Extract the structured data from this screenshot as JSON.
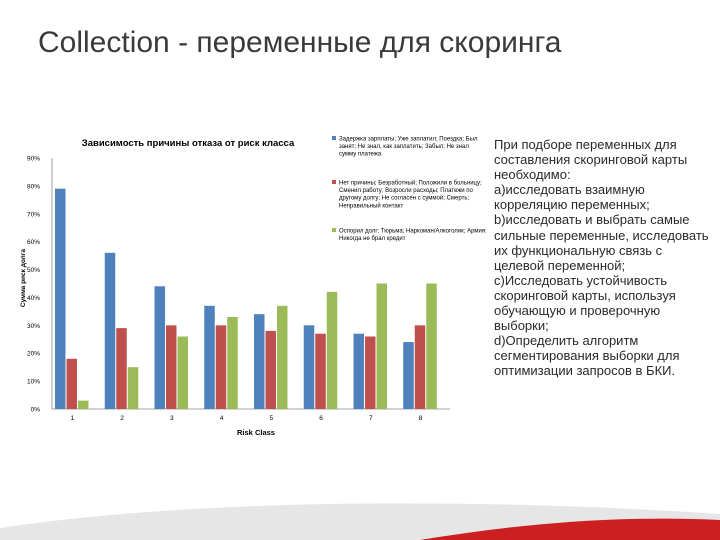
{
  "slide": {
    "title": "Collection - переменные для скоринга",
    "body_text": "При подборе переменных для составления скоринговой карты необходимо:\nа)исследовать взаимную корреляцию переменных;\nb)исследовать и выбрать самые сильные переменные, исследовать их функциональную связь с целевой переменной;\nс)Исследовать устойчивость скоринговой карты, используя обучающую и проверочную выборки;\nd)Определить алгоритм сегментирования выборки для оптимизации запросов в БКИ."
  },
  "colors": {
    "series": [
      "#4f81bd",
      "#c0504d",
      "#9bbb59"
    ],
    "accent": "#cc1f1f"
  },
  "chart_data": {
    "type": "bar",
    "title": "Зависимость причины отказа от риск класса",
    "xlabel": "Risk Class",
    "ylabel": "Сумма риск долга",
    "categories": [
      "1",
      "2",
      "3",
      "4",
      "5",
      "6",
      "7",
      "8"
    ],
    "y_ticks": [
      "0%",
      "10%",
      "20%",
      "30%",
      "40%",
      "50%",
      "60%",
      "70%",
      "80%",
      "90%"
    ],
    "ylim": [
      0,
      90
    ],
    "grid": false,
    "legend_position": "right",
    "series": [
      {
        "name": "Задержка зарплаты; Уже заплатил; Поездка; Был занят; Не знал, как заплатить; Забыл; Не знал сумму платежа",
        "values": [
          79,
          56,
          44,
          37,
          34,
          30,
          27,
          24
        ]
      },
      {
        "name": "Нет причины; Безработный; Положили в больницу; Сменил работу; Возросли расходы; Платежи по другому долгу; Не согласен с суммой; Смерть; Неправильный контакт",
        "values": [
          18,
          29,
          30,
          30,
          28,
          27,
          26,
          30
        ]
      },
      {
        "name": "Оспорил долг; Тюрьма; Наркоман/Алкоголик; Армия; Никогда не брал кредит",
        "values": [
          3,
          15,
          26,
          33,
          37,
          42,
          45,
          45
        ]
      }
    ]
  }
}
